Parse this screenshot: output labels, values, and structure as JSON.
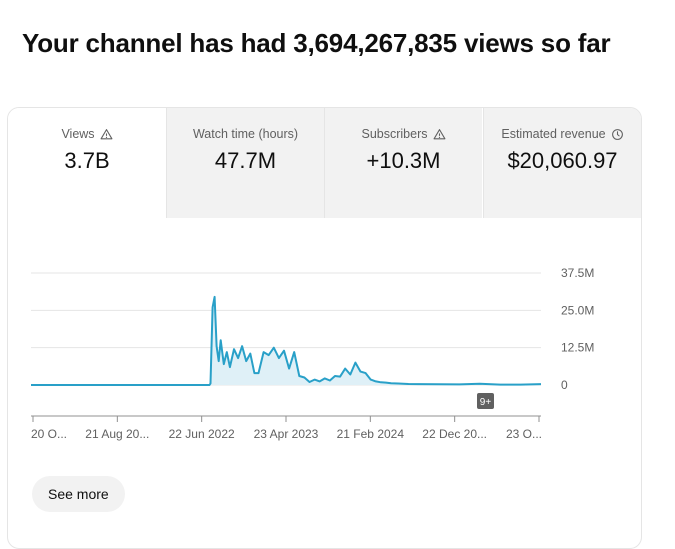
{
  "headline": "Your channel has had 3,694,267,835 views so far",
  "metrics": [
    {
      "label": "Views",
      "value": "3.7B",
      "icon": "warning-icon"
    },
    {
      "label": "Watch time (hours)",
      "value": "47.7M",
      "icon": ""
    },
    {
      "label": "Subscribers",
      "value": "+10.3M",
      "icon": "warning-icon"
    },
    {
      "label": "Estimated revenue",
      "value": "$20,060.97",
      "icon": "clock-icon"
    }
  ],
  "chart_data": {
    "type": "area",
    "title": "",
    "xlabel": "",
    "ylabel": "",
    "ylim": [
      0,
      37500000
    ],
    "y_ticks": [
      0,
      12500000,
      25000000,
      37500000
    ],
    "y_tick_labels": [
      "0",
      "12.5M",
      "25.0M",
      "37.5M"
    ],
    "x_tick_labels": [
      "20 O...",
      "21 Aug 20...",
      "22 Jun 2022",
      "23 Apr 2023",
      "21 Feb 2024",
      "22 Dec 20...",
      "23 O..."
    ],
    "x": [
      0,
      0.1,
      0.2,
      0.3,
      0.35,
      0.352,
      0.356,
      0.36,
      0.364,
      0.368,
      0.372,
      0.378,
      0.384,
      0.39,
      0.398,
      0.406,
      0.414,
      0.422,
      0.43,
      0.438,
      0.446,
      0.456,
      0.466,
      0.476,
      0.486,
      0.496,
      0.506,
      0.516,
      0.526,
      0.536,
      0.546,
      0.556,
      0.566,
      0.576,
      0.586,
      0.596,
      0.606,
      0.616,
      0.626,
      0.636,
      0.646,
      0.656,
      0.666,
      0.676,
      0.686,
      0.696,
      0.706,
      0.72,
      0.74,
      0.76,
      0.8,
      0.84,
      0.88,
      0.92,
      0.96,
      1.0
    ],
    "series": [
      {
        "name": "Views",
        "color": "#29a0c8",
        "fill": "#dff0f7",
        "values": [
          0,
          0,
          0,
          0,
          0,
          500000,
          26000000,
          29500000,
          13000000,
          8000000,
          15000000,
          7000000,
          11000000,
          6000000,
          12000000,
          9000000,
          13000000,
          8000000,
          10500000,
          4000000,
          4000000,
          11000000,
          10000000,
          12500000,
          9000000,
          11500000,
          5500000,
          11000000,
          3000000,
          2500000,
          1000000,
          1800000,
          1200000,
          2200000,
          1500000,
          3000000,
          2800000,
          5500000,
          3500000,
          7500000,
          4500000,
          4000000,
          1800000,
          1200000,
          900000,
          800000,
          600000,
          500000,
          350000,
          300000,
          250000,
          200000,
          400000,
          150000,
          150000,
          300000
        ]
      }
    ],
    "annotation": "9+"
  },
  "see_more": "See more"
}
